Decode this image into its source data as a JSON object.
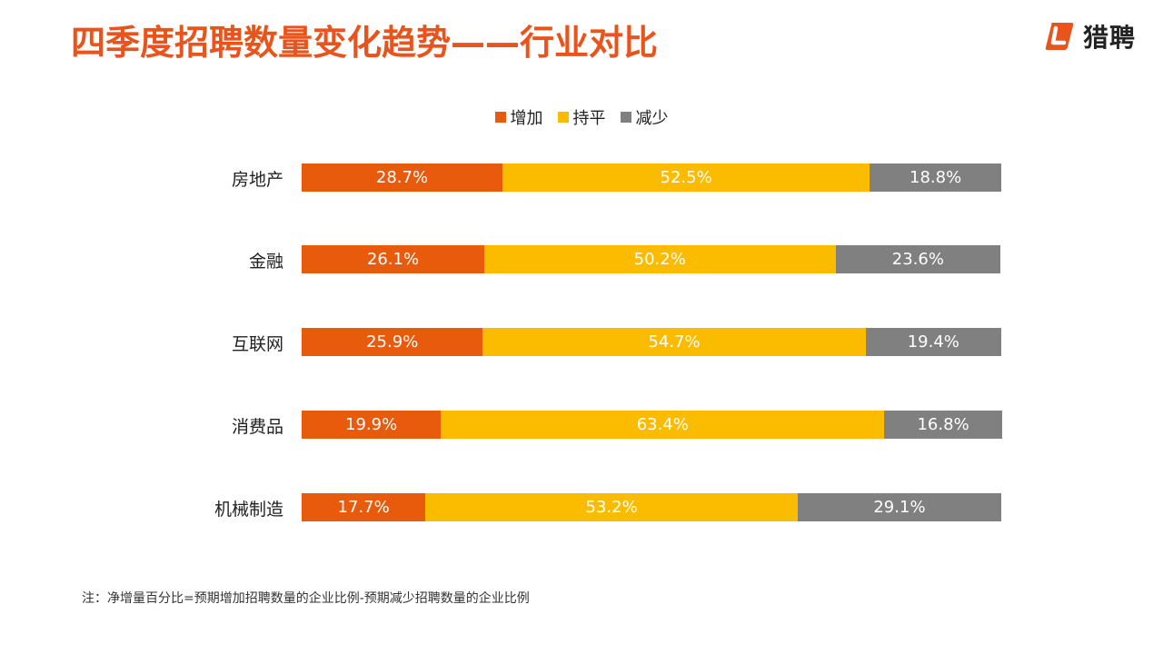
{
  "page": {
    "title": "四季度招聘数量变化趋势——行业对比",
    "logo_text": "猎聘",
    "logo_icon": "liepin-logo-icon",
    "note": "注：净增量百分比=预期增加招聘数量的企业比例-预期减少招聘数量的企业比例"
  },
  "chart_data": {
    "type": "bar",
    "orientation": "horizontal",
    "stacked": true,
    "title": "",
    "xlabel": "",
    "ylabel": "",
    "xlim": [
      0,
      100
    ],
    "grid": false,
    "legend_position": "top",
    "categories": [
      "房地产",
      "金融",
      "互联网",
      "消费品",
      "机械制造"
    ],
    "series": [
      {
        "name": "增加",
        "color": "#e85a0c",
        "values": [
          28.7,
          26.1,
          25.9,
          19.9,
          17.7
        ]
      },
      {
        "name": "持平",
        "color": "#fbbc00",
        "values": [
          52.5,
          50.2,
          54.7,
          63.4,
          53.2
        ]
      },
      {
        "name": "减少",
        "color": "#808080",
        "values": [
          18.8,
          23.6,
          19.4,
          16.8,
          29.1
        ]
      }
    ],
    "data_labels": [
      [
        "28.7%",
        "26.1%",
        "25.9%",
        "19.9%",
        "17.7%"
      ],
      [
        "52.5%",
        "50.2%",
        "54.7%",
        "63.4%",
        "53.2%"
      ],
      [
        "18.8%",
        "23.6%",
        "19.4%",
        "16.8%",
        "29.1%"
      ]
    ]
  }
}
